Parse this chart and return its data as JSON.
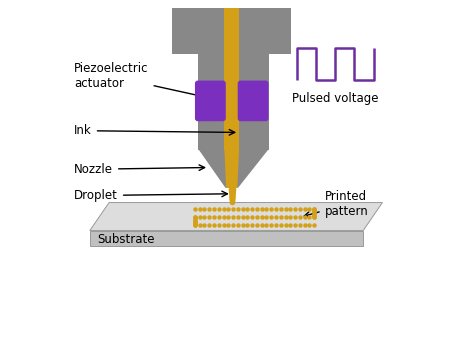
{
  "bg_color": "#ffffff",
  "gray_color": "#888888",
  "gold_color": "#D4A017",
  "purple_color": "#7B2FBE",
  "substrate_top_color": "#DDDDDD",
  "substrate_front_color": "#C0C0C0",
  "substrate_edge_color": "#999999",
  "text_color": "#000000",
  "pulse_color": "#6B2FA0",
  "labels": {
    "piezoelectric": "Piezoelectric\nactuator",
    "ink": "Ink",
    "nozzle": "Nozzle",
    "droplet": "Droplet",
    "substrate": "Substrate",
    "pulsed": "Pulsed voltage",
    "printed": "Printed\npattern"
  },
  "figsize": [
    4.74,
    3.56
  ],
  "dpi": 100
}
